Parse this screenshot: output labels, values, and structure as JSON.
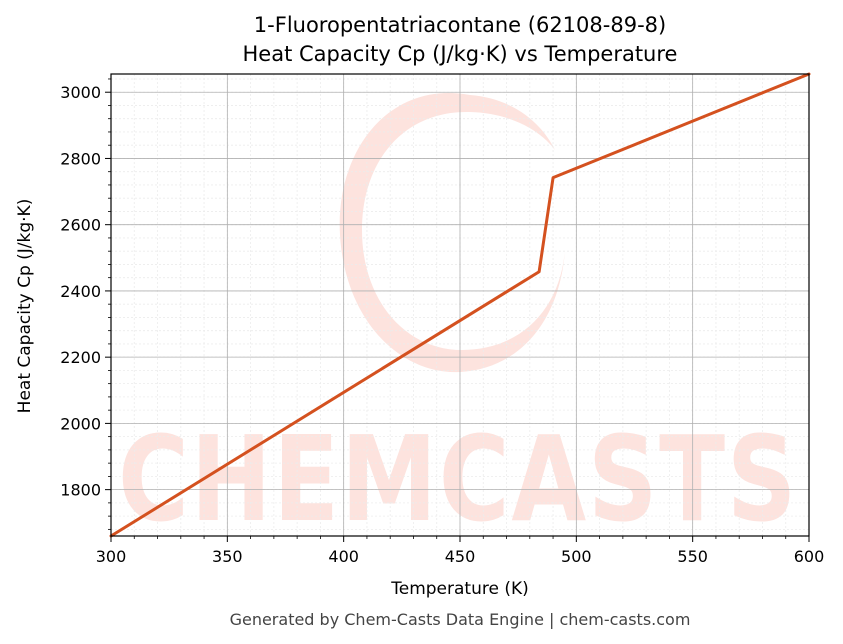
{
  "chart_data": {
    "type": "line",
    "title_line1": "1-Fluoropentatriacontane (62108-89-8)",
    "title_line2": "Heat Capacity Cp (J/kg·K) vs Temperature",
    "xlabel": "Temperature (K)",
    "ylabel": "Heat Capacity Cp (J/kg·K)",
    "xlim": [
      300,
      600
    ],
    "ylim": [
      1660,
      3055
    ],
    "xticks": [
      300,
      350,
      400,
      450,
      500,
      550,
      600
    ],
    "yticks": [
      1800,
      2000,
      2200,
      2400,
      2600,
      2800,
      3000
    ],
    "grid": true,
    "series": [
      {
        "color": "#d4511f",
        "x": [
          300,
          484,
          490,
          600
        ],
        "y": [
          1660,
          2458,
          2742,
          3055
        ]
      }
    ]
  },
  "watermark": {
    "text": "CHEMCASTS",
    "color": "#fde3de"
  },
  "footer": "Generated by Chem-Casts Data Engine | chem-casts.com"
}
